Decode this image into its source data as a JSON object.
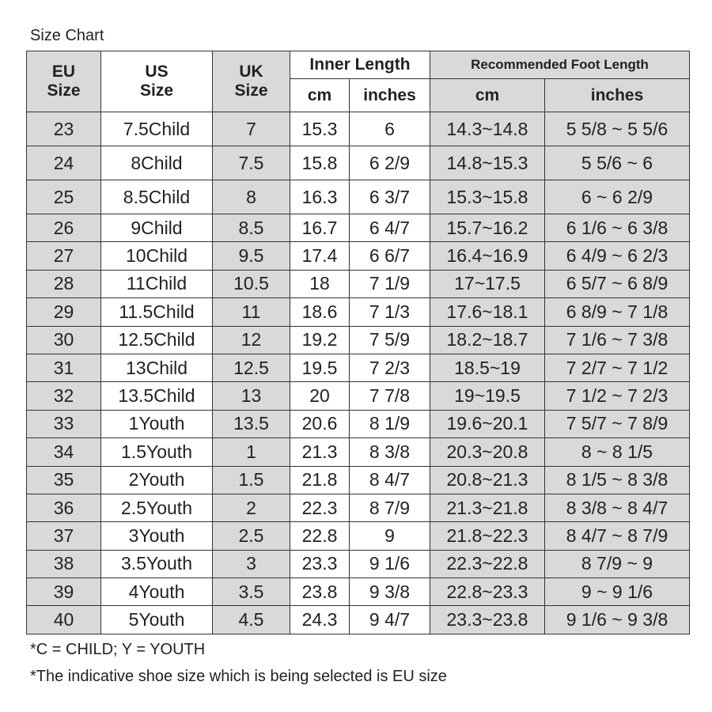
{
  "title": "Size Chart",
  "headers": {
    "eu": [
      "EU",
      "Size"
    ],
    "us": [
      "US",
      "Size"
    ],
    "uk": [
      "UK",
      "Size"
    ],
    "inner": "Inner Length",
    "inner_cm": "cm",
    "inner_in": "inches",
    "foot": "Recommended Foot Length",
    "foot_cm": "cm",
    "foot_in": "inches"
  },
  "rows": [
    [
      "23",
      "7.5Child",
      "7",
      "15.3",
      "6",
      "14.3~14.8",
      "5 5/8 ~ 5 5/6"
    ],
    [
      "24",
      "8Child",
      "7.5",
      "15.8",
      "6 2/9",
      "14.8~15.3",
      "5 5/6 ~ 6"
    ],
    [
      "25",
      "8.5Child",
      "8",
      "16.3",
      "6 3/7",
      "15.3~15.8",
      "6 ~ 6 2/9"
    ],
    [
      "26",
      "9Child",
      "8.5",
      "16.7",
      "6 4/7",
      "15.7~16.2",
      "6 1/6 ~ 6 3/8"
    ],
    [
      "27",
      "10Child",
      "9.5",
      "17.4",
      "6 6/7",
      "16.4~16.9",
      "6 4/9 ~ 6 2/3"
    ],
    [
      "28",
      "11Child",
      "10.5",
      "18",
      "7 1/9",
      "17~17.5",
      "6 5/7 ~ 6 8/9"
    ],
    [
      "29",
      "11.5Child",
      "11",
      "18.6",
      "7 1/3",
      "17.6~18.1",
      "6 8/9 ~ 7 1/8"
    ],
    [
      "30",
      "12.5Child",
      "12",
      "19.2",
      "7 5/9",
      "18.2~18.7",
      "7 1/6 ~ 7 3/8"
    ],
    [
      "31",
      "13Child",
      "12.5",
      "19.5",
      "7 2/3",
      "18.5~19",
      "7 2/7 ~ 7 1/2"
    ],
    [
      "32",
      "13.5Child",
      "13",
      "20",
      "7 7/8",
      "19~19.5",
      "7 1/2 ~ 7 2/3"
    ],
    [
      "33",
      "1Youth",
      "13.5",
      "20.6",
      "8 1/9",
      "19.6~20.1",
      "7 5/7 ~ 7 8/9"
    ],
    [
      "34",
      "1.5Youth",
      "1",
      "21.3",
      "8 3/8",
      "20.3~20.8",
      "8 ~ 8 1/5"
    ],
    [
      "35",
      "2Youth",
      "1.5",
      "21.8",
      "8 4/7",
      "20.8~21.3",
      "8 1/5 ~ 8 3/8"
    ],
    [
      "36",
      "2.5Youth",
      "2",
      "22.3",
      "8 7/9",
      "21.3~21.8",
      "8 3/8 ~ 8 4/7"
    ],
    [
      "37",
      "3Youth",
      "2.5",
      "22.8",
      "9",
      "21.8~22.3",
      "8 4/7 ~ 8 7/9"
    ],
    [
      "38",
      "3.5Youth",
      "3",
      "23.3",
      "9 1/6",
      "22.3~22.8",
      "8 7/9 ~ 9"
    ],
    [
      "39",
      "4Youth",
      "3.5",
      "23.8",
      "9 3/8",
      "22.8~23.3",
      "9 ~ 9 1/6"
    ],
    [
      "40",
      "5Youth",
      "4.5",
      "24.3",
      "9 4/7",
      "23.3~23.8",
      "9 1/6 ~ 9 3/8"
    ]
  ],
  "notes": [
    "*C = CHILD; Y = YOUTH",
    "*The indicative shoe size which is being selected is EU size"
  ],
  "colors": {
    "shaded": "#d9d9d9",
    "border": "#333333"
  }
}
